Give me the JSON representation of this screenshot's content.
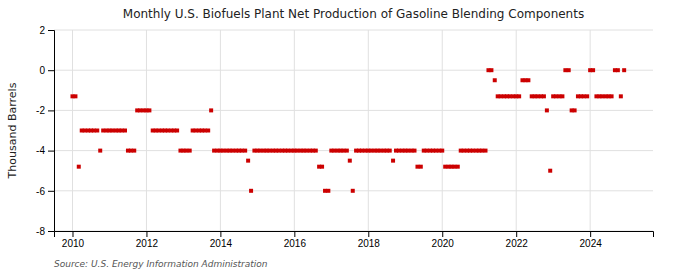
{
  "chart_data": {
    "type": "scatter",
    "title": "Monthly U.S. Biofuels Plant Net Production of Gasoline Blending Components",
    "ylabel": "Thousand Barrels",
    "source": "Source: U.S. Energy Information Administration",
    "color": "#cc0000",
    "marker": "square",
    "grid": true,
    "xlim": [
      2009.5,
      2025.7
    ],
    "xticks": [
      2010,
      2012,
      2014,
      2016,
      2018,
      2020,
      2022,
      2024
    ],
    "ylim": [
      -8,
      2
    ],
    "yticks": [
      -8,
      -6,
      -4,
      -2,
      0,
      2
    ],
    "x": [
      2010.0,
      2010.08,
      2010.17,
      2010.25,
      2010.33,
      2010.42,
      2010.5,
      2010.58,
      2010.67,
      2010.75,
      2010.83,
      2010.92,
      2011.0,
      2011.08,
      2011.17,
      2011.25,
      2011.33,
      2011.42,
      2011.5,
      2011.58,
      2011.67,
      2011.75,
      2011.83,
      2011.92,
      2012.0,
      2012.08,
      2012.17,
      2012.25,
      2012.33,
      2012.42,
      2012.5,
      2012.58,
      2012.67,
      2012.75,
      2012.83,
      2012.92,
      2013.0,
      2013.08,
      2013.17,
      2013.25,
      2013.33,
      2013.42,
      2013.5,
      2013.58,
      2013.67,
      2013.75,
      2013.83,
      2013.92,
      2014.0,
      2014.08,
      2014.17,
      2014.25,
      2014.33,
      2014.42,
      2014.5,
      2014.58,
      2014.67,
      2014.75,
      2014.83,
      2014.92,
      2015.0,
      2015.08,
      2015.17,
      2015.25,
      2015.33,
      2015.42,
      2015.5,
      2015.58,
      2015.67,
      2015.75,
      2015.83,
      2015.92,
      2016.0,
      2016.08,
      2016.17,
      2016.25,
      2016.33,
      2016.42,
      2016.5,
      2016.58,
      2016.67,
      2016.75,
      2016.83,
      2016.92,
      2017.0,
      2017.08,
      2017.17,
      2017.25,
      2017.33,
      2017.42,
      2017.5,
      2017.58,
      2017.67,
      2017.75,
      2017.83,
      2017.92,
      2018.0,
      2018.08,
      2018.17,
      2018.25,
      2018.33,
      2018.42,
      2018.5,
      2018.58,
      2018.67,
      2018.75,
      2018.83,
      2018.92,
      2019.0,
      2019.08,
      2019.17,
      2019.25,
      2019.33,
      2019.42,
      2019.5,
      2019.58,
      2019.67,
      2019.75,
      2019.83,
      2019.92,
      2020.0,
      2020.08,
      2020.17,
      2020.25,
      2020.33,
      2020.42,
      2020.5,
      2020.58,
      2020.67,
      2020.75,
      2020.83,
      2020.92,
      2021.0,
      2021.08,
      2021.17,
      2021.25,
      2021.33,
      2021.42,
      2021.5,
      2021.58,
      2021.67,
      2021.75,
      2021.83,
      2021.92,
      2022.0,
      2022.08,
      2022.17,
      2022.25,
      2022.33,
      2022.42,
      2022.5,
      2022.58,
      2022.67,
      2022.75,
      2022.83,
      2022.92,
      2023.0,
      2023.08,
      2023.17,
      2023.25,
      2023.33,
      2023.42,
      2023.5,
      2023.58,
      2023.67,
      2023.75,
      2023.83,
      2023.92,
      2024.0,
      2024.08,
      2024.17,
      2024.25,
      2024.33,
      2024.42,
      2024.5,
      2024.58,
      2024.67,
      2024.75,
      2024.83,
      2024.92
    ],
    "values": [
      -1.3,
      -1.3,
      -4.8,
      -3.0,
      -3.0,
      -3.0,
      -3.0,
      -3.0,
      -3.0,
      -4.0,
      -3.0,
      -3.0,
      -3.0,
      -3.0,
      -3.0,
      -3.0,
      -3.0,
      -3.0,
      -4.0,
      -4.0,
      -4.0,
      -2.0,
      -2.0,
      -2.0,
      -2.0,
      -2.0,
      -3.0,
      -3.0,
      -3.0,
      -3.0,
      -3.0,
      -3.0,
      -3.0,
      -3.0,
      -3.0,
      -4.0,
      -4.0,
      -4.0,
      -4.0,
      -3.0,
      -3.0,
      -3.0,
      -3.0,
      -3.0,
      -3.0,
      -2.0,
      -4.0,
      -4.0,
      -4.0,
      -4.0,
      -4.0,
      -4.0,
      -4.0,
      -4.0,
      -4.0,
      -4.0,
      -4.0,
      -4.5,
      -6.0,
      -4.0,
      -4.0,
      -4.0,
      -4.0,
      -4.0,
      -4.0,
      -4.0,
      -4.0,
      -4.0,
      -4.0,
      -4.0,
      -4.0,
      -4.0,
      -4.0,
      -4.0,
      -4.0,
      -4.0,
      -4.0,
      -4.0,
      -4.0,
      -4.0,
      -4.8,
      -4.8,
      -6.0,
      -6.0,
      -4.0,
      -4.0,
      -4.0,
      -4.0,
      -4.0,
      -4.0,
      -4.5,
      -6.0,
      -4.0,
      -4.0,
      -4.0,
      -4.0,
      -4.0,
      -4.0,
      -4.0,
      -4.0,
      -4.0,
      -4.0,
      -4.0,
      -4.0,
      -4.5,
      -4.0,
      -4.0,
      -4.0,
      -4.0,
      -4.0,
      -4.0,
      -4.0,
      -4.8,
      -4.8,
      -4.0,
      -4.0,
      -4.0,
      -4.0,
      -4.0,
      -4.0,
      -4.0,
      -4.8,
      -4.8,
      -4.8,
      -4.8,
      -4.8,
      -4.0,
      -4.0,
      -4.0,
      -4.0,
      -4.0,
      -4.0,
      -4.0,
      -4.0,
      -4.0,
      0.0,
      0.0,
      -0.5,
      -1.3,
      -1.3,
      -1.3,
      -1.3,
      -1.3,
      -1.3,
      -1.3,
      -1.3,
      -0.5,
      -0.5,
      -0.5,
      -1.3,
      -1.3,
      -1.3,
      -1.3,
      -1.3,
      -2.0,
      -5.0,
      -1.3,
      -1.3,
      -1.3,
      -1.3,
      0.0,
      0.0,
      -2.0,
      -2.0,
      -1.3,
      -1.3,
      -1.3,
      -1.3,
      0.0,
      0.0,
      -1.3,
      -1.3,
      -1.3,
      -1.3,
      -1.3,
      -1.3,
      0.0,
      0.0,
      -1.3,
      0.0
    ]
  }
}
